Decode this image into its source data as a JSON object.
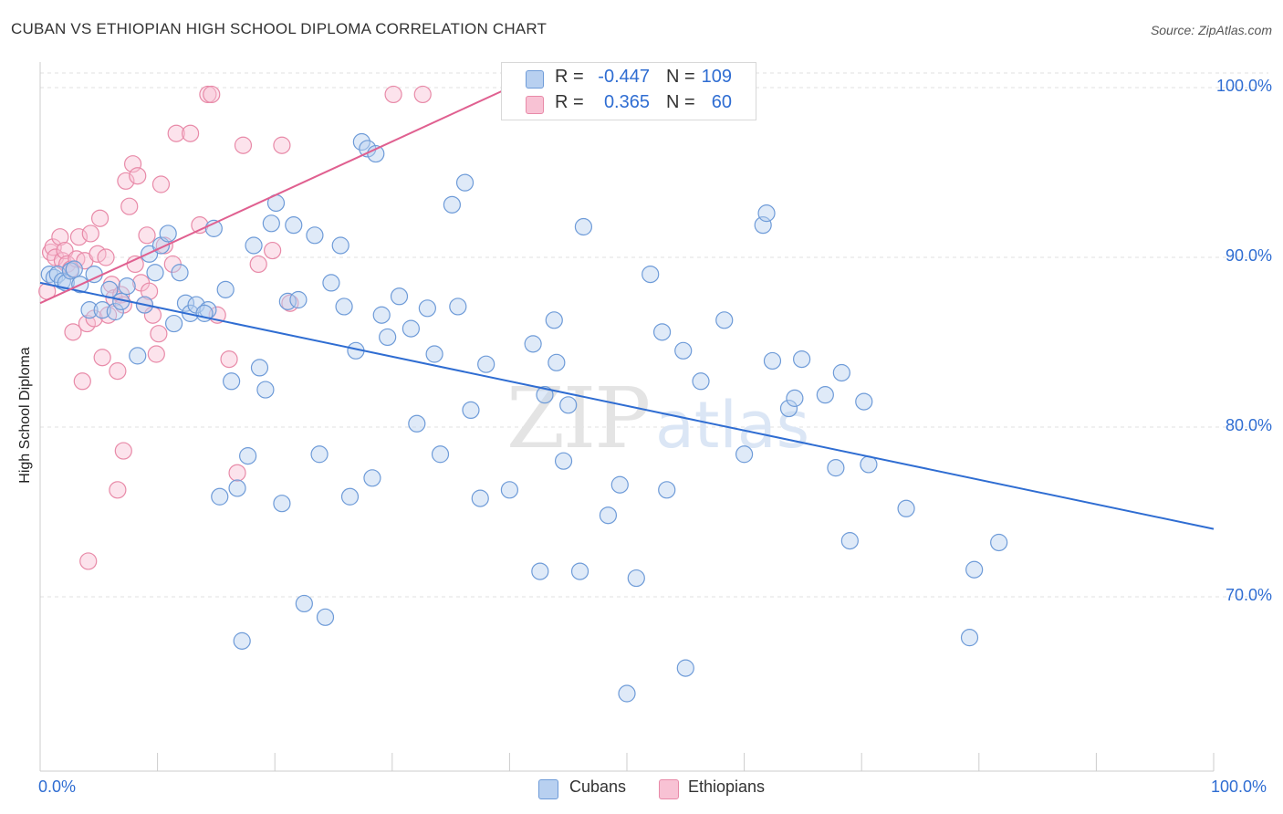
{
  "header": {
    "title": "CUBAN VS ETHIOPIAN HIGH SCHOOL DIPLOMA CORRELATION CHART",
    "source": "Source: ZipAtlas.com"
  },
  "legend": {
    "rows": [
      {
        "r_label": "R =",
        "r_value": "-0.447",
        "n_label": "N =",
        "n_value": "109"
      },
      {
        "r_label": "R =",
        "r_value": "0.365",
        "n_label": "N =",
        "n_value": "60"
      }
    ],
    "bottom": [
      "Cubans",
      "Ethiopians"
    ]
  },
  "watermark": {
    "zip": "ZIP",
    "atlas": "atlas"
  },
  "colors": {
    "cubans_fill": "#b8d0f0",
    "cubans_stroke": "#6e9bd8",
    "cubans_line": "#2f6dd2",
    "ethiopians_fill": "#f8c2d4",
    "ethiopians_stroke": "#e88aa8",
    "ethiopians_line": "#e06090",
    "tick_text": "#2f6dd2"
  },
  "chart_data": {
    "type": "scatter",
    "title": "CUBAN VS ETHIOPIAN HIGH SCHOOL DIPLOMA CORRELATION CHART",
    "xlabel": "",
    "ylabel": "High School Diploma",
    "xlim": [
      0,
      100
    ],
    "ylim": [
      61,
      101
    ],
    "x_tick_labels": [
      "0.0%",
      "100.0%"
    ],
    "y_ticks": [
      70,
      80,
      90,
      100
    ],
    "y_tick_labels": [
      "70.0%",
      "80.0%",
      "90.0%",
      "100.0%"
    ],
    "grid": true,
    "legend_position": "top-center",
    "series": [
      {
        "name": "Cubans",
        "r": -0.447,
        "n": 109,
        "trend": {
          "x": [
            0,
            100
          ],
          "y": [
            88.5,
            74.0
          ]
        },
        "points": [
          [
            0.8,
            89.0
          ],
          [
            1.2,
            88.8
          ],
          [
            1.5,
            89.0
          ],
          [
            1.9,
            88.6
          ],
          [
            2.2,
            88.5
          ],
          [
            2.6,
            89.2
          ],
          [
            2.9,
            89.3
          ],
          [
            3.4,
            88.4
          ],
          [
            4.2,
            86.9
          ],
          [
            4.6,
            89.0
          ],
          [
            5.3,
            86.9
          ],
          [
            5.9,
            88.1
          ],
          [
            6.4,
            86.8
          ],
          [
            6.9,
            87.4
          ],
          [
            7.4,
            88.3
          ],
          [
            8.3,
            84.2
          ],
          [
            8.9,
            87.2
          ],
          [
            9.3,
            90.2
          ],
          [
            9.8,
            89.1
          ],
          [
            10.3,
            90.7
          ],
          [
            10.9,
            91.4
          ],
          [
            11.4,
            86.1
          ],
          [
            11.9,
            89.1
          ],
          [
            12.4,
            87.3
          ],
          [
            12.8,
            86.7
          ],
          [
            13.3,
            87.2
          ],
          [
            14.3,
            86.9
          ],
          [
            14.8,
            91.7
          ],
          [
            15.3,
            75.9
          ],
          [
            15.8,
            88.1
          ],
          [
            16.3,
            82.7
          ],
          [
            16.8,
            76.4
          ],
          [
            17.2,
            67.4
          ],
          [
            17.7,
            78.3
          ],
          [
            18.2,
            90.7
          ],
          [
            18.7,
            83.5
          ],
          [
            19.2,
            82.2
          ],
          [
            19.7,
            92.0
          ],
          [
            20.1,
            93.2
          ],
          [
            20.6,
            75.5
          ],
          [
            21.1,
            87.4
          ],
          [
            21.6,
            91.9
          ],
          [
            22.0,
            87.5
          ],
          [
            22.5,
            69.6
          ],
          [
            23.4,
            91.3
          ],
          [
            23.8,
            78.4
          ],
          [
            24.3,
            68.8
          ],
          [
            24.8,
            88.5
          ],
          [
            25.6,
            90.7
          ],
          [
            25.9,
            87.1
          ],
          [
            26.4,
            75.9
          ],
          [
            26.9,
            84.5
          ],
          [
            27.4,
            96.8
          ],
          [
            27.9,
            96.4
          ],
          [
            28.3,
            77.0
          ],
          [
            28.6,
            96.1
          ],
          [
            29.1,
            86.6
          ],
          [
            29.6,
            85.3
          ],
          [
            30.6,
            87.7
          ],
          [
            31.6,
            85.8
          ],
          [
            32.1,
            80.2
          ],
          [
            33.0,
            87.0
          ],
          [
            33.6,
            84.3
          ],
          [
            34.1,
            78.4
          ],
          [
            35.1,
            93.1
          ],
          [
            35.6,
            87.1
          ],
          [
            36.2,
            94.4
          ],
          [
            36.7,
            81.0
          ],
          [
            37.5,
            75.8
          ],
          [
            38.0,
            83.7
          ],
          [
            40.0,
            76.3
          ],
          [
            42.0,
            84.9
          ],
          [
            42.6,
            71.5
          ],
          [
            43.0,
            81.9
          ],
          [
            43.8,
            86.3
          ],
          [
            44.0,
            83.8
          ],
          [
            44.6,
            78.0
          ],
          [
            45.0,
            81.3
          ],
          [
            46.0,
            71.5
          ],
          [
            46.3,
            91.8
          ],
          [
            48.4,
            74.8
          ],
          [
            49.4,
            76.6
          ],
          [
            50.8,
            71.1
          ],
          [
            52.0,
            89.0
          ],
          [
            53.0,
            85.6
          ],
          [
            53.4,
            76.3
          ],
          [
            54.8,
            84.5
          ],
          [
            56.3,
            82.7
          ],
          [
            58.3,
            86.3
          ],
          [
            60.0,
            78.4
          ],
          [
            61.6,
            91.9
          ],
          [
            61.9,
            92.6
          ],
          [
            62.4,
            83.9
          ],
          [
            63.8,
            81.1
          ],
          [
            64.3,
            81.7
          ],
          [
            64.9,
            84.0
          ],
          [
            66.9,
            81.9
          ],
          [
            67.8,
            77.6
          ],
          [
            68.3,
            83.2
          ],
          [
            69.0,
            73.3
          ],
          [
            70.2,
            81.5
          ],
          [
            70.6,
            77.8
          ],
          [
            73.8,
            75.2
          ],
          [
            79.2,
            67.6
          ],
          [
            79.6,
            71.6
          ],
          [
            81.7,
            73.2
          ],
          [
            55.0,
            65.8
          ],
          [
            50.0,
            64.3
          ],
          [
            14.0,
            86.7
          ]
        ]
      },
      {
        "name": "Ethiopians",
        "r": 0.365,
        "n": 60,
        "trend": {
          "x": [
            0,
            40
          ],
          "y": [
            87.3,
            100.0
          ]
        },
        "points": [
          [
            0.6,
            88.0
          ],
          [
            0.9,
            90.3
          ],
          [
            1.1,
            90.6
          ],
          [
            1.3,
            90.0
          ],
          [
            1.7,
            91.2
          ],
          [
            1.9,
            89.8
          ],
          [
            2.1,
            90.4
          ],
          [
            2.3,
            89.6
          ],
          [
            2.6,
            89.3
          ],
          [
            2.8,
            85.6
          ],
          [
            3.1,
            89.9
          ],
          [
            3.3,
            91.2
          ],
          [
            3.6,
            82.7
          ],
          [
            3.8,
            89.8
          ],
          [
            4.0,
            86.1
          ],
          [
            4.3,
            91.4
          ],
          [
            4.6,
            86.4
          ],
          [
            4.9,
            90.2
          ],
          [
            5.1,
            92.3
          ],
          [
            5.3,
            84.1
          ],
          [
            5.6,
            90.0
          ],
          [
            5.8,
            86.6
          ],
          [
            6.1,
            88.4
          ],
          [
            6.3,
            87.6
          ],
          [
            6.6,
            83.3
          ],
          [
            6.9,
            87.8
          ],
          [
            7.1,
            87.2
          ],
          [
            7.3,
            94.5
          ],
          [
            7.6,
            93.0
          ],
          [
            7.9,
            95.5
          ],
          [
            8.1,
            89.6
          ],
          [
            8.3,
            94.8
          ],
          [
            8.6,
            88.5
          ],
          [
            8.9,
            87.2
          ],
          [
            9.1,
            91.3
          ],
          [
            9.3,
            88.0
          ],
          [
            9.6,
            86.6
          ],
          [
            9.9,
            84.3
          ],
          [
            10.1,
            85.5
          ],
          [
            10.3,
            94.3
          ],
          [
            10.6,
            90.7
          ],
          [
            11.3,
            89.6
          ],
          [
            11.6,
            97.3
          ],
          [
            12.8,
            97.3
          ],
          [
            13.6,
            91.9
          ],
          [
            14.3,
            99.6
          ],
          [
            14.6,
            99.6
          ],
          [
            15.1,
            86.6
          ],
          [
            16.8,
            77.3
          ],
          [
            17.3,
            96.6
          ],
          [
            18.6,
            89.6
          ],
          [
            19.8,
            90.4
          ],
          [
            20.6,
            96.6
          ],
          [
            21.3,
            87.3
          ],
          [
            30.1,
            99.6
          ],
          [
            32.6,
            99.6
          ],
          [
            7.1,
            78.6
          ],
          [
            6.6,
            76.3
          ],
          [
            4.1,
            72.1
          ],
          [
            16.1,
            84.0
          ]
        ]
      }
    ]
  }
}
